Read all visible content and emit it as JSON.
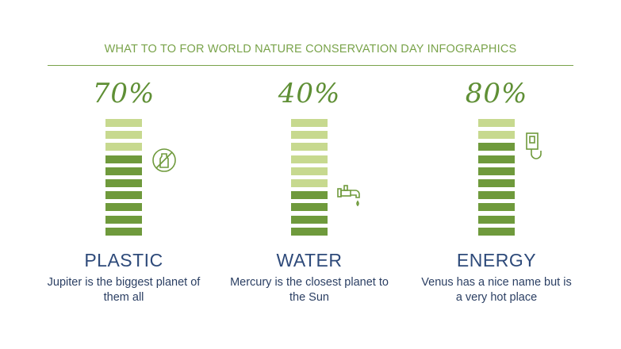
{
  "title": "WHAT TO TO FOR WORLD NATURE CONSERVATION DAY INFOGRAPHICS",
  "colors": {
    "accent": "#79a34a",
    "filled": "#6f9a3c",
    "empty": "#c7d98f",
    "heading": "#2e4a7a"
  },
  "items": [
    {
      "percent": "70%",
      "level": 0.7,
      "name": "PLASTIC",
      "description": "Jupiter is the biggest planet of them all",
      "icon": "no-plastic-bottle-icon"
    },
    {
      "percent": "40%",
      "level": 0.4,
      "name": "WATER",
      "description": "Mercury is the closest planet to the Sun",
      "icon": "water-faucet-icon"
    },
    {
      "percent": "80%",
      "level": 0.8,
      "name": "ENERGY",
      "description": "Venus has a nice name but is a very hot place",
      "icon": "light-switch-icon"
    }
  ]
}
